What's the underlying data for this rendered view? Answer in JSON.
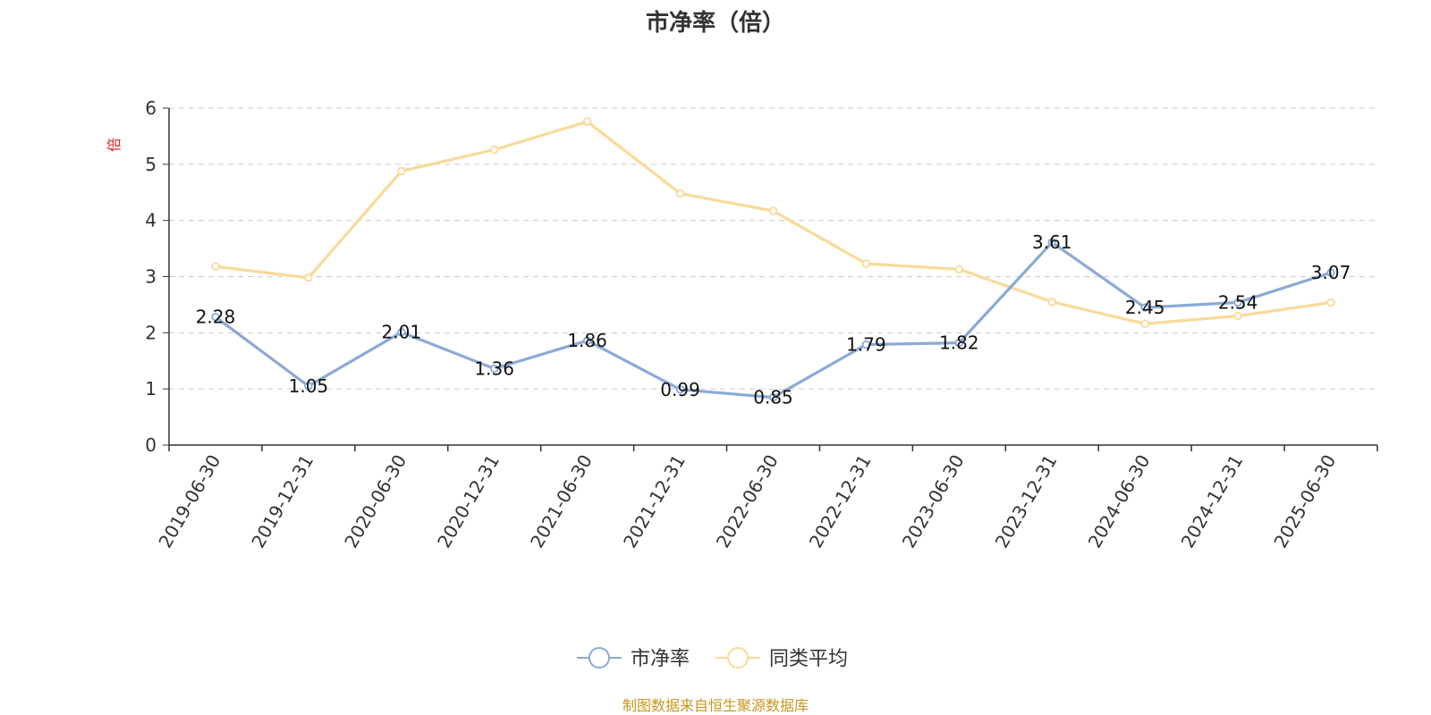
{
  "chart_data": {
    "type": "line",
    "title": "市净率（倍）",
    "ylabel": "倍",
    "xlabel": "",
    "categories": [
      "2019-06-30",
      "2019-12-31",
      "2020-06-30",
      "2020-12-31",
      "2021-06-30",
      "2021-12-31",
      "2022-06-30",
      "2022-12-31",
      "2023-06-30",
      "2023-12-31",
      "2024-06-30",
      "2024-12-31",
      "2025-06-30"
    ],
    "ylim": [
      0,
      6
    ],
    "yticks": [
      "0",
      "1",
      "2",
      "3",
      "4",
      "5",
      "6"
    ],
    "grid": true,
    "legend_position": "bottom-center",
    "series": [
      {
        "name": "市净率",
        "color": "#8aaad6",
        "values": [
          2.28,
          1.05,
          2.01,
          1.36,
          1.86,
          0.99,
          0.85,
          1.79,
          1.82,
          3.61,
          2.45,
          2.54,
          3.07
        ],
        "labels": [
          "2.28",
          "1.05",
          "2.01",
          "1.36",
          "1.86",
          "0.99",
          "0.85",
          "1.79",
          "1.82",
          "3.61",
          "2.45",
          "2.54",
          "3.07"
        ]
      },
      {
        "name": "同类平均",
        "color": "#fad999",
        "values": [
          3.18,
          2.98,
          4.88,
          5.26,
          5.76,
          4.48,
          4.17,
          3.23,
          3.13,
          2.55,
          2.16,
          2.3,
          2.54
        ]
      }
    ]
  },
  "colors": {
    "unit_label": "#dd2222",
    "source_text": "#c8961e",
    "axis": "#333333",
    "grid": "#cccccc"
  },
  "source": "制图数据来自恒生聚源数据库"
}
